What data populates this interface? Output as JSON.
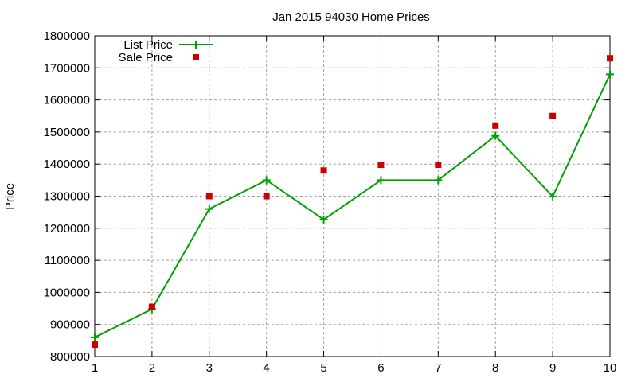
{
  "chart_data": {
    "type": "line",
    "title": "Jan 2015 94030 Home Prices",
    "xlabel": "",
    "ylabel": "Price",
    "x": [
      1,
      2,
      3,
      4,
      5,
      6,
      7,
      8,
      9,
      10
    ],
    "series": [
      {
        "name": "List Price",
        "style": "line+cross",
        "color": "#00a000",
        "values": [
          860000,
          948000,
          1260000,
          1350000,
          1227000,
          1350000,
          1350000,
          1488000,
          1299000,
          1680000
        ]
      },
      {
        "name": "Sale Price",
        "style": "square markers",
        "color": "#cc0000",
        "values": [
          837000,
          955000,
          1300000,
          1300000,
          1380000,
          1398000,
          1398000,
          1520000,
          1550000,
          1730000
        ]
      }
    ],
    "xlim": [
      1,
      10
    ],
    "ylim": [
      800000,
      1800000
    ],
    "xticks": [
      "1",
      "2",
      "3",
      "4",
      "5",
      "6",
      "7",
      "8",
      "9",
      "10"
    ],
    "yticks": [
      "800000",
      "900000",
      "1000000",
      "1100000",
      "1200000",
      "1300000",
      "1400000",
      "1500000",
      "1600000",
      "1700000",
      "1800000"
    ],
    "grid": true,
    "legend_position": "top-left"
  }
}
